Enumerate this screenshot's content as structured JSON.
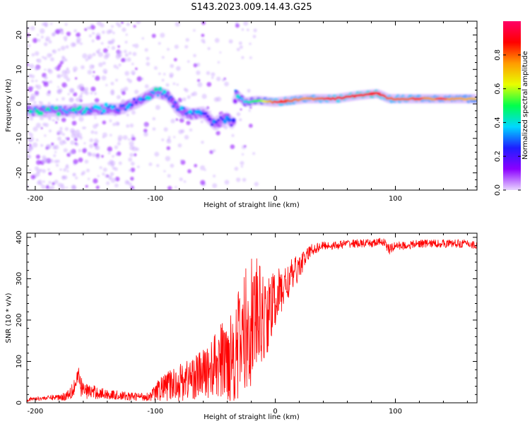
{
  "figure_title": "S143.2023.009.14.43.G25",
  "chart_data": [
    {
      "type": "heatmap",
      "title": "",
      "xlabel": "Height of straight line (km)",
      "ylabel": "Frequency (Hz)",
      "xlim": [
        -207,
        168
      ],
      "ylim": [
        -25,
        24
      ],
      "x_ticks": [
        -200,
        -100,
        0,
        100
      ],
      "y_ticks": [
        -20,
        -10,
        0,
        10,
        20
      ],
      "colorbar": {
        "label": "Normalized spectral amplitude",
        "range": [
          0.0,
          1.0
        ],
        "ticks": [
          0.0,
          0.2,
          0.4,
          0.6,
          0.8
        ],
        "colormap": [
          "#e9d6ff",
          "#8b00ff",
          "#1e1eff",
          "#00d8ff",
          "#00ff4c",
          "#e8ff00",
          "#ff9c00",
          "#ff0000",
          "#ff0066"
        ]
      },
      "ridge": {
        "x": [
          -190,
          -170,
          -150,
          -130,
          -115,
          -100,
          -90,
          -80,
          -70,
          -60,
          -50,
          -40,
          -35,
          -33,
          -25,
          -15,
          0,
          25,
          50,
          70,
          85,
          95,
          110,
          130,
          150,
          168
        ],
        "y": [
          -2,
          -2,
          -1.5,
          -1.5,
          0.5,
          3.5,
          2.5,
          -2,
          -3,
          -2.5,
          -6,
          -4,
          -6,
          3,
          0.5,
          1,
          0.5,
          1.5,
          1.5,
          2.5,
          3,
          1.5,
          1.5,
          1.5,
          1.5,
          1.5
        ],
        "amplitude": [
          0.35,
          0.35,
          0.3,
          0.3,
          0.25,
          0.35,
          0.3,
          0.3,
          0.3,
          0.25,
          0.25,
          0.25,
          0.15,
          0.3,
          0.4,
          0.5,
          0.85,
          0.75,
          0.85,
          0.9,
          0.9,
          0.8,
          0.8,
          0.75,
          0.75,
          0.7
        ]
      }
    },
    {
      "type": "line",
      "title": "",
      "xlabel": "Height of straight line (km)",
      "ylabel": "SNR (10 * v/v)",
      "xlim": [
        -207,
        168
      ],
      "ylim": [
        0,
        410
      ],
      "x_ticks": [
        -200,
        -100,
        0,
        100
      ],
      "y_ticks": [
        0,
        100,
        200,
        300,
        400
      ],
      "series": [
        {
          "color": "#ff0000",
          "x": [
            -207,
            -190,
            -175,
            -167,
            -165,
            -160,
            -140,
            -120,
            -105,
            -95,
            -80,
            -70,
            -60,
            -50,
            -40,
            -30,
            -25,
            -20,
            -15,
            -10,
            -5,
            0,
            5,
            10,
            15,
            20,
            25,
            30,
            40,
            50,
            60,
            70,
            80,
            90,
            95,
            100,
            110,
            120,
            140,
            160,
            168
          ],
          "y": [
            8,
            12,
            15,
            40,
            60,
            30,
            20,
            15,
            15,
            35,
            50,
            60,
            70,
            90,
            110,
            140,
            170,
            200,
            210,
            200,
            220,
            250,
            270,
            290,
            310,
            330,
            350,
            370,
            380,
            380,
            385,
            385,
            385,
            390,
            370,
            380,
            380,
            385,
            385,
            385,
            380
          ],
          "noise_amplitude": [
            5,
            5,
            10,
            30,
            35,
            20,
            12,
            10,
            10,
            30,
            45,
            55,
            60,
            80,
            110,
            140,
            160,
            160,
            140,
            110,
            90,
            70,
            60,
            50,
            40,
            30,
            20,
            15,
            10,
            10,
            10,
            10,
            10,
            10,
            12,
            10,
            10,
            10,
            10,
            10,
            10
          ]
        }
      ]
    }
  ]
}
